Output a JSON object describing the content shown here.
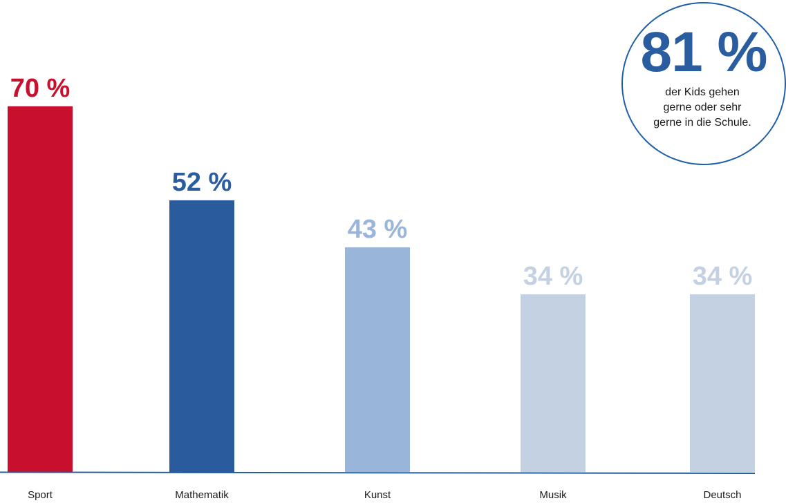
{
  "chart_data": {
    "type": "bar",
    "categories": [
      "Sport",
      "Mathematik",
      "Kunst",
      "Musik",
      "Deutsch"
    ],
    "values": [
      70,
      52,
      43,
      34,
      34
    ],
    "value_labels": [
      "70 %",
      "52 %",
      "43 %",
      "34 %",
      "34 %"
    ],
    "colors": [
      "#c8102e",
      "#2a5b9c",
      "#9ab5da",
      "#c4d1e3",
      "#c4d1e3"
    ],
    "label_colors": [
      "#c8102e",
      "#2a5da0",
      "#9ab5da",
      "#c4d1e3",
      "#c4d1e3"
    ],
    "axis_color": "#2a5b9c",
    "ylim": [
      0,
      100
    ],
    "grid": false,
    "legend": "none",
    "title": "",
    "xlabel": "",
    "ylabel": ""
  },
  "callout": {
    "value": "81 %",
    "text": "der Kids gehen gerne oder sehr gerne in die Schule.",
    "border_color": "#1f5fa8"
  }
}
